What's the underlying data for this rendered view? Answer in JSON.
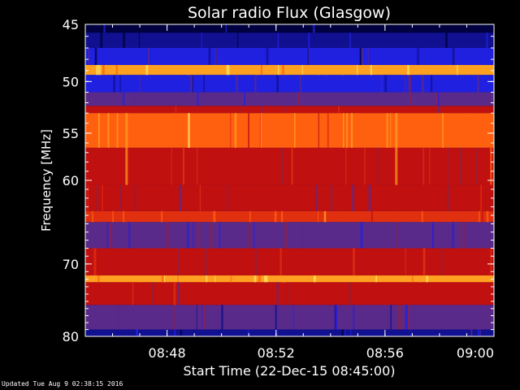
{
  "chart_data": {
    "type": "heatmap",
    "title": "Solar radio Flux (Glasgow)",
    "xlabel": "Start Time (22-Dec-15 08:45:00)",
    "ylabel": "Frequency [MHz]",
    "x_ticks": [
      {
        "label": "08:48",
        "minutes": 3
      },
      {
        "label": "08:52",
        "minutes": 7
      },
      {
        "label": "08:56",
        "minutes": 11
      },
      {
        "label": "09:00",
        "minutes": 15
      }
    ],
    "y_ticks": [
      {
        "label": "45",
        "mhz": 45
      },
      {
        "label": "50",
        "mhz": 50
      },
      {
        "label": "55",
        "mhz": 55
      },
      {
        "label": "60",
        "mhz": 60
      },
      {
        "label": "70",
        "mhz": 70
      },
      {
        "label": "80",
        "mhz": 80
      }
    ],
    "xlim_minutes": [
      0,
      15
    ],
    "ylim_mhz": [
      45,
      80
    ],
    "y_scale": "log",
    "y_inverted": true,
    "colormap": [
      "#000040",
      "#101090",
      "#2020e0",
      "#5a2a8a",
      "#902040",
      "#c01010",
      "#e03010",
      "#ff6010",
      "#ffa020",
      "#ffe060"
    ],
    "bands": [
      {
        "from": 45.0,
        "to": 45.7,
        "intensity": 0.05
      },
      {
        "from": 45.7,
        "to": 47.0,
        "intensity": 0.12
      },
      {
        "from": 47.0,
        "to": 48.5,
        "intensity": 0.2
      },
      {
        "from": 48.5,
        "to": 49.4,
        "intensity": 0.88
      },
      {
        "from": 49.4,
        "to": 51.0,
        "intensity": 0.22
      },
      {
        "from": 51.0,
        "to": 52.3,
        "intensity": 0.3
      },
      {
        "from": 52.3,
        "to": 53.0,
        "intensity": 0.55
      },
      {
        "from": 53.0,
        "to": 56.5,
        "intensity": 0.78
      },
      {
        "from": 56.5,
        "to": 60.5,
        "intensity": 0.6
      },
      {
        "from": 60.5,
        "to": 63.5,
        "intensity": 0.52
      },
      {
        "from": 63.5,
        "to": 64.8,
        "intensity": 0.68
      },
      {
        "from": 64.8,
        "to": 68.0,
        "intensity": 0.36
      },
      {
        "from": 68.0,
        "to": 71.5,
        "intensity": 0.54
      },
      {
        "from": 71.5,
        "to": 72.4,
        "intensity": 0.92
      },
      {
        "from": 72.4,
        "to": 75.5,
        "intensity": 0.5
      },
      {
        "from": 75.5,
        "to": 79.0,
        "intensity": 0.3
      },
      {
        "from": 79.0,
        "to": 80.0,
        "intensity": 0.15
      }
    ],
    "vertical_artifacts_minutes": [
      1.5,
      11.4
    ]
  },
  "footer": {
    "updated": "Updated Tue Aug  9 02:38:15 2016"
  },
  "colors": {
    "background": "#000000",
    "text": "#ffffff",
    "axis": "#ffffff"
  }
}
